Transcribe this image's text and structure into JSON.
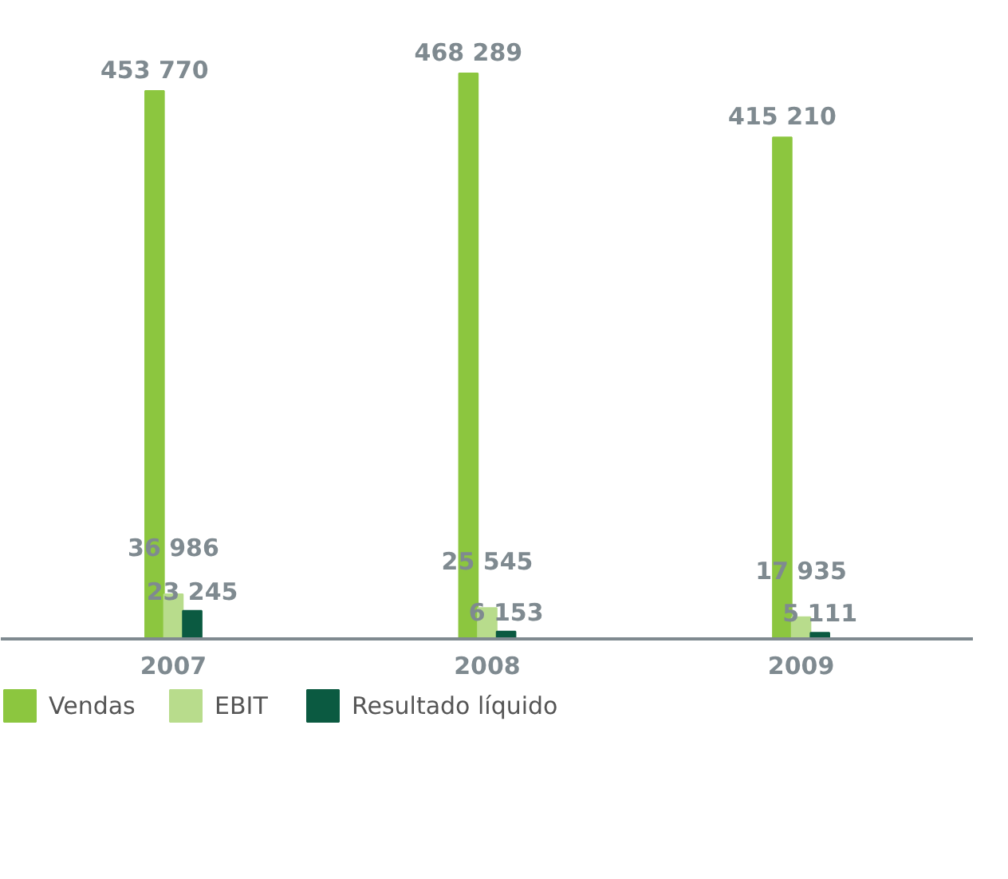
{
  "chart_data": {
    "type": "bar",
    "categories": [
      "2007",
      "2008",
      "2009"
    ],
    "series": [
      {
        "name": "Vendas",
        "color": "#8cc63f",
        "values": [
          453770,
          468289,
          415210
        ],
        "value_labels": [
          "453 770",
          "468 289",
          "415 210"
        ]
      },
      {
        "name": "EBIT",
        "color": "#b8dc8c",
        "values": [
          36986,
          25545,
          17935
        ],
        "value_labels": [
          "36 986",
          "25 545",
          "17 935"
        ]
      },
      {
        "name": "Resultado líquido",
        "color": "#0b5a41",
        "values": [
          23245,
          6153,
          5111
        ],
        "value_labels": [
          "23 245",
          "6 153",
          "5 111"
        ]
      }
    ],
    "legend": "bottom",
    "grid": false
  }
}
